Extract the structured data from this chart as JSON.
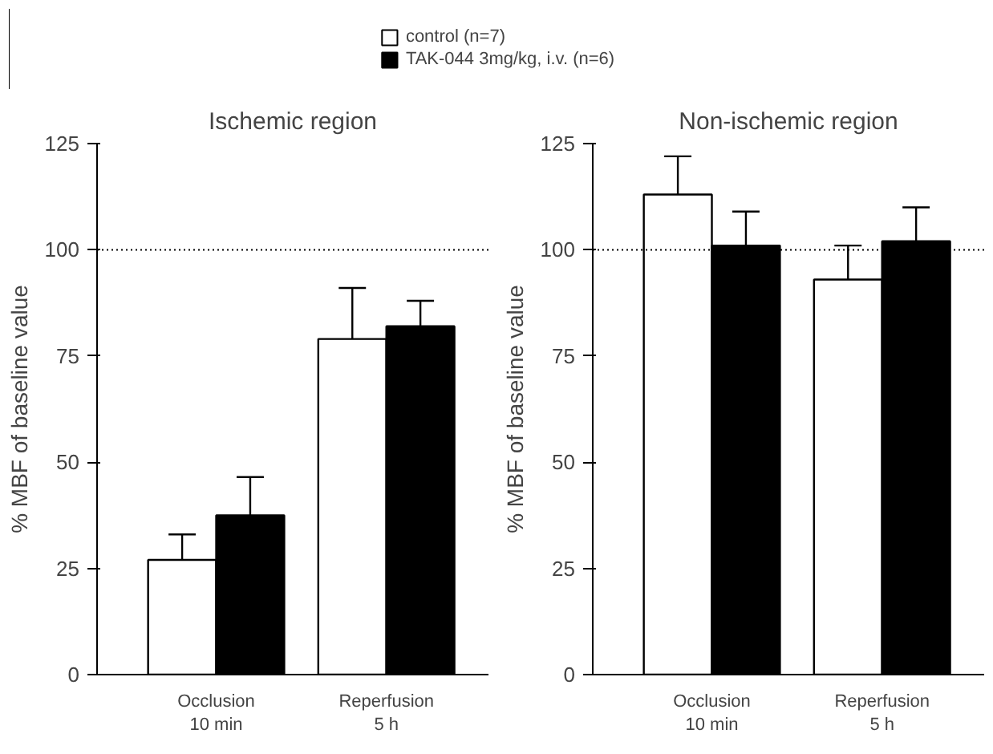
{
  "chart_data": [
    {
      "type": "bar",
      "title": "Ischemic region",
      "ylabel": "% MBF of baseline value",
      "categories": [
        "Occlusion\n10 min",
        "Reperfusion\n5 h"
      ],
      "series": [
        {
          "name": "control (n=7)",
          "color": "#ffffff",
          "values": [
            27,
            79
          ],
          "errors": [
            [
              27,
              33
            ],
            [
              79,
              91
            ]
          ]
        },
        {
          "name": "TAK-044 3mg/kg, i.v. (n=6)",
          "color": "#000000",
          "values": [
            37.5,
            82
          ],
          "errors": [
            [
              37.5,
              46.5
            ],
            [
              82,
              88
            ]
          ]
        }
      ],
      "ylim": [
        0,
        125
      ],
      "yticks": [
        0,
        25,
        50,
        75,
        100,
        125
      ],
      "ref_lines": [
        {
          "axis": "y",
          "value": 100,
          "line_style": "dotted"
        }
      ],
      "legend": "top",
      "grid": false
    },
    {
      "type": "bar",
      "title": "Non-ischemic region",
      "ylabel": "% MBF of baseline value",
      "categories": [
        "Occlusion\n10 min",
        "Reperfusion\n5 h"
      ],
      "series": [
        {
          "color": "#ffffff",
          "values": [
            113,
            93
          ],
          "errors": [
            [
              113,
              122
            ],
            [
              93,
              101
            ]
          ]
        },
        {
          "color": "#000000",
          "values": [
            101,
            102
          ],
          "errors": [
            [
              101,
              109
            ],
            [
              102,
              110
            ]
          ]
        }
      ],
      "ylim": [
        0,
        125
      ],
      "yticks": [
        0,
        25,
        50,
        75,
        100,
        125
      ],
      "ref_lines": [
        {
          "axis": "y",
          "value": 100,
          "line_style": "dotted"
        }
      ],
      "grid": false
    }
  ]
}
